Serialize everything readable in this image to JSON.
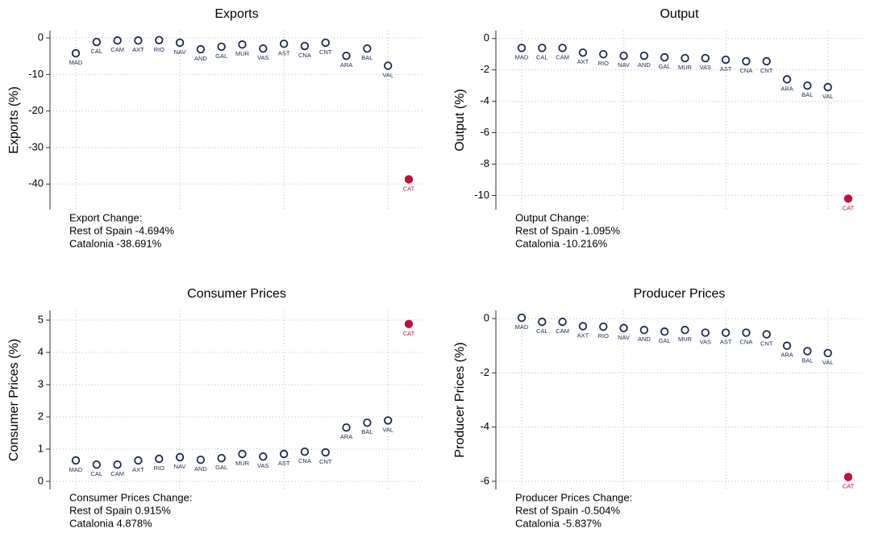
{
  "chart_data": [
    {
      "type": "scatter",
      "title": "Exports",
      "y_label": "Exports (%)",
      "categories": [
        "MAD",
        "CAL",
        "CAM",
        "AXT",
        "RIO",
        "NAV",
        "AND",
        "GAL",
        "MUR",
        "VAS",
        "AST",
        "CNA",
        "CNT",
        "ARA",
        "BAL",
        "VAL",
        "CAT"
      ],
      "values": [
        -4.2,
        -1.1,
        -0.7,
        -0.7,
        -0.6,
        -1.3,
        -3.1,
        -2.4,
        -1.8,
        -2.9,
        -1.6,
        -2.2,
        -1.3,
        -4.9,
        -2.9,
        -7.6,
        -38.7
      ],
      "colors": [
        "#1a2a50",
        "#1a2a50",
        "#1a2a50",
        "#1a2a50",
        "#1a2a50",
        "#1a2a50",
        "#1a2a50",
        "#1a2a50",
        "#1a2a50",
        "#1a2a50",
        "#1a2a50",
        "#1a2a50",
        "#1a2a50",
        "#1a2a50",
        "#1a2a50",
        "#1a2a50",
        "#c0103c"
      ],
      "ylim": [
        -47,
        2
      ],
      "yticks": [
        0,
        -10,
        -20,
        -30,
        -40
      ],
      "grid": true,
      "annotation": [
        "Export Change:",
        "Rest of Spain -4.694%",
        "Catalonia -38.691%"
      ]
    },
    {
      "type": "scatter",
      "title": "Output",
      "y_label": "Output (%)",
      "categories": [
        "MAD",
        "CAL",
        "CAM",
        "AXT",
        "RIO",
        "NAV",
        "AND",
        "GAL",
        "MUR",
        "VAS",
        "AST",
        "CNA",
        "CNT",
        "ARA",
        "BAL",
        "VAL",
        "CAT"
      ],
      "values": [
        -0.6,
        -0.6,
        -0.6,
        -0.9,
        -1.0,
        -1.1,
        -1.1,
        -1.2,
        -1.25,
        -1.25,
        -1.35,
        -1.45,
        -1.45,
        -2.6,
        -3.0,
        -3.1,
        -10.2
      ],
      "colors": [
        "#1a2a50",
        "#1a2a50",
        "#1a2a50",
        "#1a2a50",
        "#1a2a50",
        "#1a2a50",
        "#1a2a50",
        "#1a2a50",
        "#1a2a50",
        "#1a2a50",
        "#1a2a50",
        "#1a2a50",
        "#1a2a50",
        "#1a2a50",
        "#1a2a50",
        "#1a2a50",
        "#c0103c"
      ],
      "ylim": [
        -10.9,
        0.5
      ],
      "yticks": [
        0,
        -2,
        -4,
        -6,
        -8,
        -10
      ],
      "grid": true,
      "annotation": [
        "Output Change:",
        "Rest of Spain -1.095%",
        "Catalonia -10.216%"
      ]
    },
    {
      "type": "scatter",
      "title": "Consumer Prices",
      "y_label": "Consumer Prices (%)",
      "categories": [
        "MAD",
        "CAL",
        "CAM",
        "AXT",
        "RIO",
        "NAV",
        "AND",
        "GAL",
        "MUR",
        "VAS",
        "AST",
        "CNA",
        "CNT",
        "ARA",
        "BAL",
        "VAL",
        "CAT"
      ],
      "values": [
        0.65,
        0.52,
        0.52,
        0.65,
        0.7,
        0.75,
        0.67,
        0.72,
        0.85,
        0.77,
        0.85,
        0.92,
        0.9,
        1.67,
        1.82,
        1.89,
        4.88
      ],
      "colors": [
        "#1a2a50",
        "#1a2a50",
        "#1a2a50",
        "#1a2a50",
        "#1a2a50",
        "#1a2a50",
        "#1a2a50",
        "#1a2a50",
        "#1a2a50",
        "#1a2a50",
        "#1a2a50",
        "#1a2a50",
        "#1a2a50",
        "#1a2a50",
        "#1a2a50",
        "#1a2a50",
        "#c0103c"
      ],
      "ylim": [
        -0.25,
        5.3
      ],
      "yticks": [
        0,
        1,
        2,
        3,
        4,
        5
      ],
      "grid": true,
      "annotation": [
        "Consumer Prices Change:",
        "Rest of Spain 0.915%",
        "Catalonia 4.878%"
      ]
    },
    {
      "type": "scatter",
      "title": "Producer Prices",
      "y_label": "Producer Prices (%)",
      "categories": [
        "MAD",
        "CAL",
        "CAM",
        "AXT",
        "RIO",
        "NAV",
        "AND",
        "GAL",
        "MUR",
        "VAS",
        "AST",
        "CNA",
        "CNT",
        "ARA",
        "BAL",
        "VAL",
        "CAT"
      ],
      "values": [
        0.03,
        -0.12,
        -0.12,
        -0.28,
        -0.3,
        -0.35,
        -0.42,
        -0.48,
        -0.42,
        -0.52,
        -0.52,
        -0.52,
        -0.58,
        -1.0,
        -1.2,
        -1.27,
        -5.84
      ],
      "colors": [
        "#1a2a50",
        "#1a2a50",
        "#1a2a50",
        "#1a2a50",
        "#1a2a50",
        "#1a2a50",
        "#1a2a50",
        "#1a2a50",
        "#1a2a50",
        "#1a2a50",
        "#1a2a50",
        "#1a2a50",
        "#1a2a50",
        "#1a2a50",
        "#1a2a50",
        "#1a2a50",
        "#c0103c"
      ],
      "ylim": [
        -6.3,
        0.3
      ],
      "yticks": [
        0,
        -2,
        -4,
        -6
      ],
      "grid": true,
      "annotation": [
        "Producer Prices Change:",
        "Rest of Spain -0.504%",
        "Catalonia -5.837%"
      ]
    }
  ]
}
